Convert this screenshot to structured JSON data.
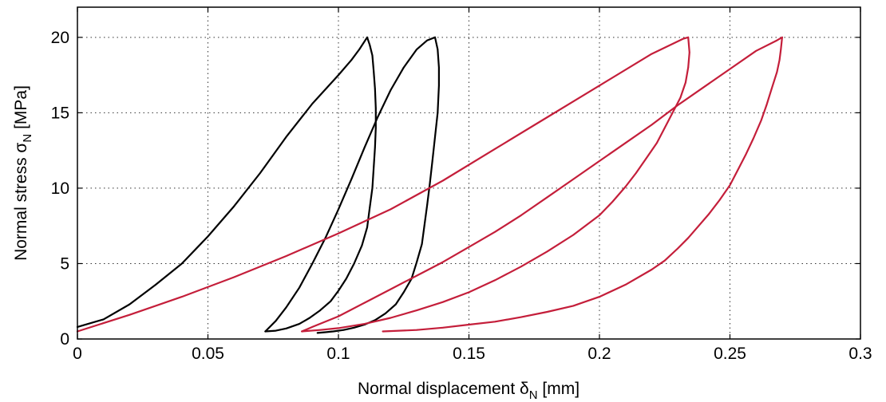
{
  "chart_data": {
    "type": "line",
    "xlabel": "Normal displacement δN [mm]",
    "ylabel": "Normal stress σN [MPa]",
    "xlabel_parts": {
      "main": "Normal displacement δ",
      "sub": "N",
      "unit": " [mm]"
    },
    "ylabel_parts": {
      "main": "Normal stress σ",
      "sub": "N",
      "unit": " [MPa]"
    },
    "xlim": [
      0,
      0.3
    ],
    "ylim": [
      0,
      22
    ],
    "xticks": [
      0,
      0.05,
      0.1,
      0.15,
      0.2,
      0.25,
      0.3
    ],
    "xtick_labels": [
      "0",
      "0.05",
      "0.1",
      "0.15",
      "0.2",
      "0.25",
      "0.3"
    ],
    "yticks": [
      0,
      5,
      10,
      15,
      20
    ],
    "ytick_labels": [
      "0",
      "5",
      "10",
      "15",
      "20"
    ],
    "grid": true,
    "legend": "none",
    "colors": {
      "black_series": "#000000",
      "red_series": "#c41e3a",
      "grid": "#333333",
      "frame": "#000000"
    },
    "series": [
      {
        "color": "#000000",
        "x": [
          0.0,
          0.01,
          0.02,
          0.03,
          0.04,
          0.05,
          0.06,
          0.07,
          0.08,
          0.09,
          0.1,
          0.105,
          0.108,
          0.111,
          0.112,
          0.113,
          0.1135,
          0.114,
          0.1143,
          0.1143,
          0.114,
          0.1135,
          0.113,
          0.112,
          0.111,
          0.109,
          0.106,
          0.103,
          0.1,
          0.097,
          0.093,
          0.089,
          0.085,
          0.08,
          0.076,
          0.072
        ],
        "y": [
          0.8,
          1.3,
          2.3,
          3.6,
          5.0,
          6.8,
          8.8,
          11.0,
          13.4,
          15.6,
          17.5,
          18.5,
          19.2,
          20.0,
          19.5,
          18.8,
          17.8,
          16.6,
          15.3,
          14.0,
          12.7,
          11.3,
          10.0,
          8.7,
          7.4,
          6.2,
          5.0,
          4.0,
          3.2,
          2.5,
          1.9,
          1.4,
          1.0,
          0.7,
          0.55,
          0.5
        ]
      },
      {
        "color": "#000000",
        "x": [
          0.072,
          0.076,
          0.08,
          0.085,
          0.09,
          0.095,
          0.1,
          0.105,
          0.11,
          0.115,
          0.12,
          0.125,
          0.13,
          0.134,
          0.137,
          0.138,
          0.1385,
          0.1385,
          0.138,
          0.137,
          0.136,
          0.135,
          0.134,
          0.133,
          0.132,
          0.13,
          0.128,
          0.125,
          0.122,
          0.118,
          0.114,
          0.11,
          0.106,
          0.102,
          0.098,
          0.095,
          0.092
        ],
        "y": [
          0.5,
          1.2,
          2.1,
          3.4,
          5.0,
          6.7,
          8.6,
          10.6,
          12.7,
          14.7,
          16.5,
          18.0,
          19.2,
          19.8,
          20.0,
          19.2,
          18.0,
          16.8,
          15.0,
          13.4,
          11.8,
          10.3,
          8.9,
          7.6,
          6.3,
          5.1,
          4.0,
          3.1,
          2.3,
          1.7,
          1.25,
          0.95,
          0.75,
          0.6,
          0.5,
          0.45,
          0.4
        ]
      },
      {
        "color": "#c41e3a",
        "x": [
          0.0,
          0.02,
          0.04,
          0.06,
          0.08,
          0.1,
          0.12,
          0.14,
          0.16,
          0.18,
          0.2,
          0.22,
          0.232,
          0.234,
          0.2345,
          0.234,
          0.233,
          0.231,
          0.228,
          0.225,
          0.222,
          0.218,
          0.214,
          0.21,
          0.205,
          0.2,
          0.19,
          0.18,
          0.17,
          0.16,
          0.15,
          0.14,
          0.13,
          0.12,
          0.11,
          0.1,
          0.093,
          0.086
        ],
        "y": [
          0.5,
          1.6,
          2.8,
          4.1,
          5.5,
          7.0,
          8.6,
          10.5,
          12.6,
          14.7,
          16.8,
          18.9,
          19.9,
          20.0,
          19.0,
          18.0,
          17.0,
          16.0,
          15.0,
          14.0,
          13.0,
          12.0,
          11.0,
          10.1,
          9.1,
          8.2,
          6.9,
          5.8,
          4.8,
          3.9,
          3.1,
          2.45,
          1.9,
          1.4,
          1.0,
          0.72,
          0.6,
          0.5
        ]
      },
      {
        "color": "#c41e3a",
        "x": [
          0.086,
          0.09,
          0.1,
          0.11,
          0.12,
          0.13,
          0.14,
          0.15,
          0.16,
          0.17,
          0.18,
          0.19,
          0.2,
          0.21,
          0.22,
          0.23,
          0.24,
          0.25,
          0.26,
          0.268,
          0.27,
          0.2695,
          0.269,
          0.268,
          0.266,
          0.264,
          0.262,
          0.259,
          0.256,
          0.253,
          0.25,
          0.246,
          0.242,
          0.238,
          0.234,
          0.23,
          0.225,
          0.22,
          0.21,
          0.2,
          0.19,
          0.18,
          0.17,
          0.16,
          0.15,
          0.14,
          0.13,
          0.117
        ],
        "y": [
          0.5,
          0.8,
          1.5,
          2.4,
          3.3,
          4.2,
          5.1,
          6.1,
          7.1,
          8.2,
          9.4,
          10.6,
          11.8,
          13.0,
          14.2,
          15.5,
          16.7,
          17.9,
          19.1,
          19.8,
          20.0,
          19.2,
          18.5,
          17.7,
          16.6,
          15.5,
          14.5,
          13.3,
          12.2,
          11.2,
          10.2,
          9.2,
          8.3,
          7.5,
          6.7,
          6.0,
          5.2,
          4.6,
          3.6,
          2.8,
          2.2,
          1.8,
          1.45,
          1.15,
          0.95,
          0.75,
          0.6,
          0.5
        ]
      }
    ]
  }
}
